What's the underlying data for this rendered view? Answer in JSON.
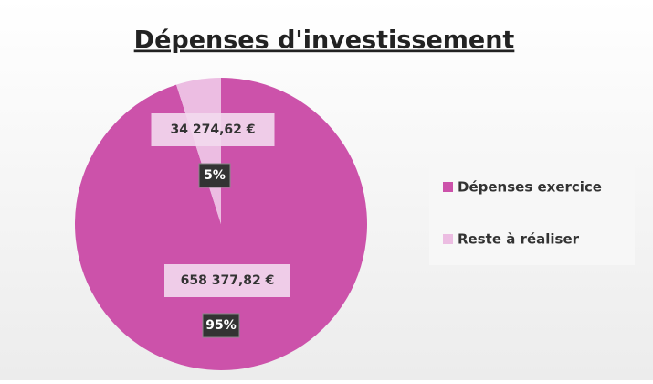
{
  "chart_data": {
    "type": "pie",
    "title": "Dépenses d'investissement",
    "categories": [
      "Dépenses exercice",
      "Reste à réaliser"
    ],
    "values": [
      658377.82,
      34274.62
    ],
    "value_labels": [
      "658 377,82 €",
      "34 274,62 €"
    ],
    "percentages": [
      95,
      5
    ],
    "percentage_labels": [
      "95%",
      "5%"
    ],
    "colors": [
      "#cc52aa",
      "#ecbde2"
    ],
    "legend": "right"
  }
}
